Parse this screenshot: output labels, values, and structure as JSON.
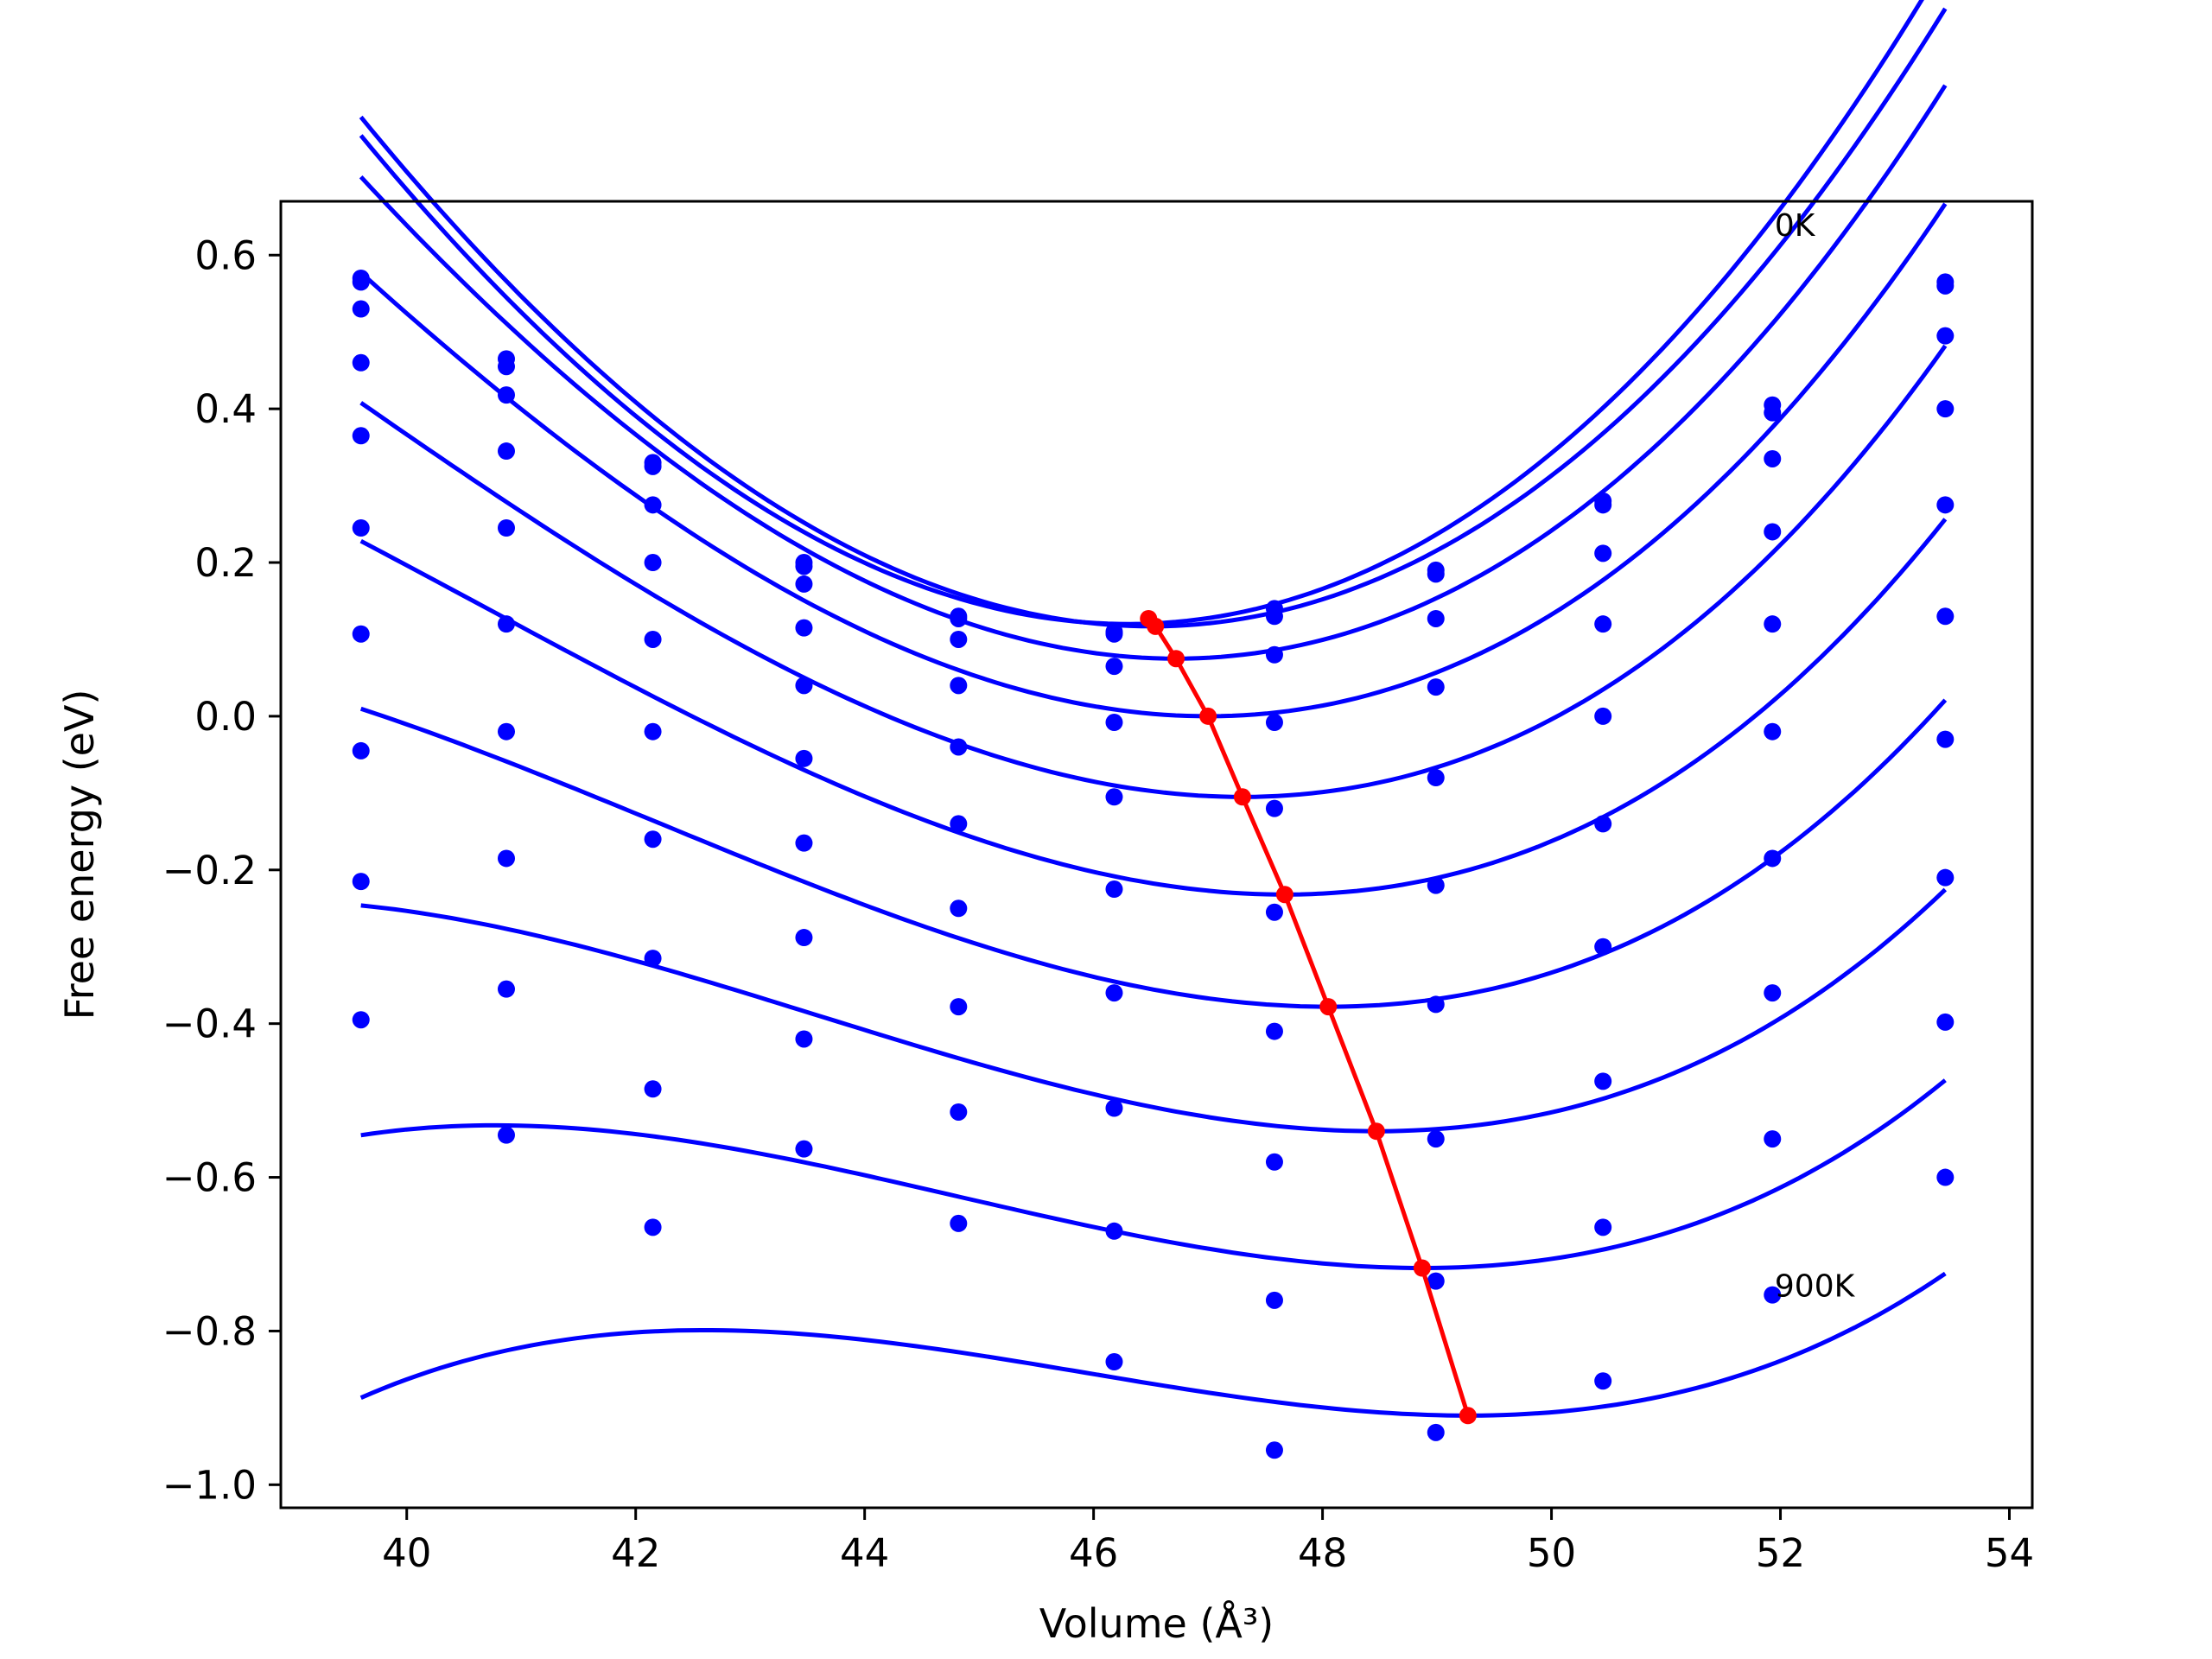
{
  "chart_data": {
    "type": "scatter",
    "xlabel": "Volume (Å³)",
    "ylabel": "Free energy (eV)",
    "xlim": [
      38.9,
      54.2
    ],
    "ylim": [
      -1.03,
      0.67
    ],
    "x_ticks": [
      40,
      42,
      44,
      46,
      48,
      50,
      52,
      54
    ],
    "y_ticks": [
      0.6,
      0.4,
      0.2,
      0.0,
      -0.2,
      -0.4,
      -0.6,
      -0.8,
      -1.0
    ],
    "x_tick_labels": [
      "40",
      "42",
      "44",
      "46",
      "48",
      "50",
      "52",
      "54"
    ],
    "y_tick_labels": [
      "0.6",
      "0.4",
      "0.2",
      "0.0",
      "−0.2",
      "−0.4",
      "−0.6",
      "−0.8",
      "−1.0"
    ],
    "grid": false,
    "colors": {
      "data": "#0000ff",
      "minima": "#ff0000",
      "frame": "#000000"
    },
    "annotations": [
      {
        "text": "0K",
        "x": 51.95,
        "y": 0.625
      },
      {
        "text": "900K",
        "x": 51.95,
        "y": -0.755
      }
    ],
    "volumes": [
      39.6,
      40.87,
      42.15,
      43.47,
      44.82,
      46.18,
      47.58,
      48.99,
      50.45,
      51.93,
      53.44
    ],
    "series": [
      {
        "points": [
          0.57,
          0.465,
          0.33,
          0.2,
          0.13,
          0.11,
          0.14,
          0.19,
          0.28,
          0.405,
          0.565
        ],
        "fit": {
          "v0": 46.3,
          "e0": 0.12,
          "k": 0.0155,
          "c": 0.0002
        }
      },
      {
        "points": [
          0.565,
          0.455,
          0.325,
          0.195,
          0.127,
          0.107,
          0.13,
          0.185,
          0.275,
          0.395,
          0.56
        ],
        "fit": {
          "v0": 46.5,
          "e0": 0.117,
          "k": 0.0153,
          "c": 0.0002
        }
      },
      {
        "points": [
          0.53,
          0.418,
          0.275,
          0.172,
          0.1,
          0.065,
          0.08,
          0.127,
          0.212,
          0.335,
          0.495
        ],
        "fit": {
          "v0": 46.72,
          "e0": 0.075,
          "k": 0.0145,
          "c": 0.0003
        }
      },
      {
        "points": [
          0.46,
          0.345,
          0.2,
          0.115,
          0.04,
          -0.008,
          -0.008,
          0.038,
          0.12,
          0.24,
          0.4
        ],
        "fit": {
          "v0": 47.0,
          "e0": 0.0,
          "k": 0.0135,
          "c": 0.0004
        }
      },
      {
        "points": [
          0.365,
          0.245,
          0.1,
          0.04,
          -0.04,
          -0.105,
          -0.12,
          -0.08,
          0.0,
          0.12,
          0.275
        ],
        "fit": {
          "v0": 47.3,
          "e0": -0.105,
          "k": 0.0125,
          "c": 0.0005
        }
      },
      {
        "points": [
          0.245,
          0.12,
          -0.02,
          -0.055,
          -0.14,
          -0.225,
          -0.255,
          -0.22,
          -0.14,
          -0.02,
          0.13
        ],
        "fit": {
          "v0": 47.67,
          "e0": -0.232,
          "k": 0.0115,
          "c": 0.00055
        }
      },
      {
        "points": [
          0.107,
          -0.02,
          -0.16,
          -0.165,
          -0.25,
          -0.36,
          -0.41,
          -0.375,
          -0.3,
          -0.185,
          -0.03
        ],
        "fit": {
          "v0": 48.05,
          "e0": -0.378,
          "k": 0.0105,
          "c": 0.0006
        }
      },
      {
        "points": [
          -0.045,
          -0.185,
          -0.315,
          -0.288,
          -0.378,
          -0.51,
          -0.58,
          -0.55,
          -0.475,
          -0.36,
          -0.21
        ],
        "fit": {
          "v0": 48.47,
          "e0": -0.54,
          "k": 0.0095,
          "c": 0.00065
        }
      },
      {
        "points": [
          -0.215,
          -0.355,
          -0.485,
          -0.42,
          -0.515,
          -0.67,
          -0.76,
          -0.735,
          -0.665,
          -0.55,
          -0.398
        ],
        "fit": {
          "v0": 48.87,
          "e0": -0.718,
          "k": 0.0085,
          "c": 0.0007
        }
      },
      {
        "points": [
          -0.395,
          -0.545,
          -0.665,
          -0.563,
          -0.66,
          -0.84,
          -0.955,
          -0.932,
          -0.865,
          -0.753,
          -0.6
        ],
        "fit": {
          "v0": 49.27,
          "e0": -0.91,
          "k": 0.0075,
          "c": 0.00075
        }
      }
    ],
    "minima": {
      "x": [
        46.48,
        46.54,
        46.72,
        47.0,
        47.3,
        47.67,
        48.05,
        48.47,
        48.87,
        49.27
      ],
      "y": [
        0.127,
        0.117,
        0.075,
        0.0,
        -0.105,
        -0.232,
        -0.378,
        -0.54,
        -0.718,
        -0.91
      ]
    }
  }
}
